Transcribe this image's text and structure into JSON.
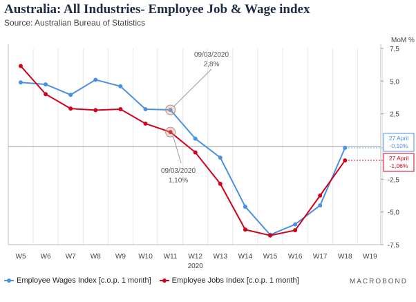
{
  "title": "Australia: All Industries- Employee Job & Wage index",
  "subtitle": "Source: Australian Bureau of Statistics",
  "brand": "MACROBOND",
  "chart_data": {
    "type": "line",
    "categories": [
      "W5",
      "W6",
      "W7",
      "W8",
      "W9",
      "W10",
      "W11",
      "W12",
      "W13",
      "W14",
      "W15",
      "W16",
      "W17",
      "W18",
      "W19"
    ],
    "x_group_label": "2020",
    "ylabel": "MoM %",
    "ylim": [
      -7.5,
      7.5
    ],
    "yticks": [
      7.5,
      5.0,
      2.5,
      -2.5,
      -5.0,
      -7.5
    ],
    "ytick_labels": [
      "7,5",
      "5,0",
      "2,5",
      "-2,5",
      "-5,0",
      "-7,5"
    ],
    "grid": "vertical",
    "legend_position": "bottom-left",
    "series": [
      {
        "name": "Employee Wages Index [c.o.p. 1 month]",
        "color": "#4a90e2",
        "values": [
          4.9,
          4.75,
          3.95,
          5.1,
          4.6,
          2.85,
          2.8,
          0.6,
          -0.85,
          -4.6,
          -6.75,
          -5.95,
          -4.5,
          -0.1,
          null
        ]
      },
      {
        "name": "Employee Jobs Index [c.o.p. 1 month]",
        "color": "#d0021b",
        "values": [
          6.15,
          4.0,
          2.9,
          2.78,
          2.85,
          1.75,
          1.1,
          -0.45,
          -2.85,
          -6.35,
          -6.8,
          -6.4,
          -3.75,
          -1.06,
          null
        ]
      }
    ],
    "annotations": [
      {
        "date": "09/03/2020",
        "value": "2,8%",
        "series": 0,
        "index": 6
      },
      {
        "date": "09/03/2020",
        "value": "1,10%",
        "series": 1,
        "index": 6
      }
    ],
    "end_labels": [
      {
        "date": "27 April",
        "value": "-0,10%",
        "color": "#4a90e2",
        "series": 0
      },
      {
        "date": "27 April",
        "value": "-1,06%",
        "color": "#d0021b",
        "series": 1
      }
    ]
  }
}
